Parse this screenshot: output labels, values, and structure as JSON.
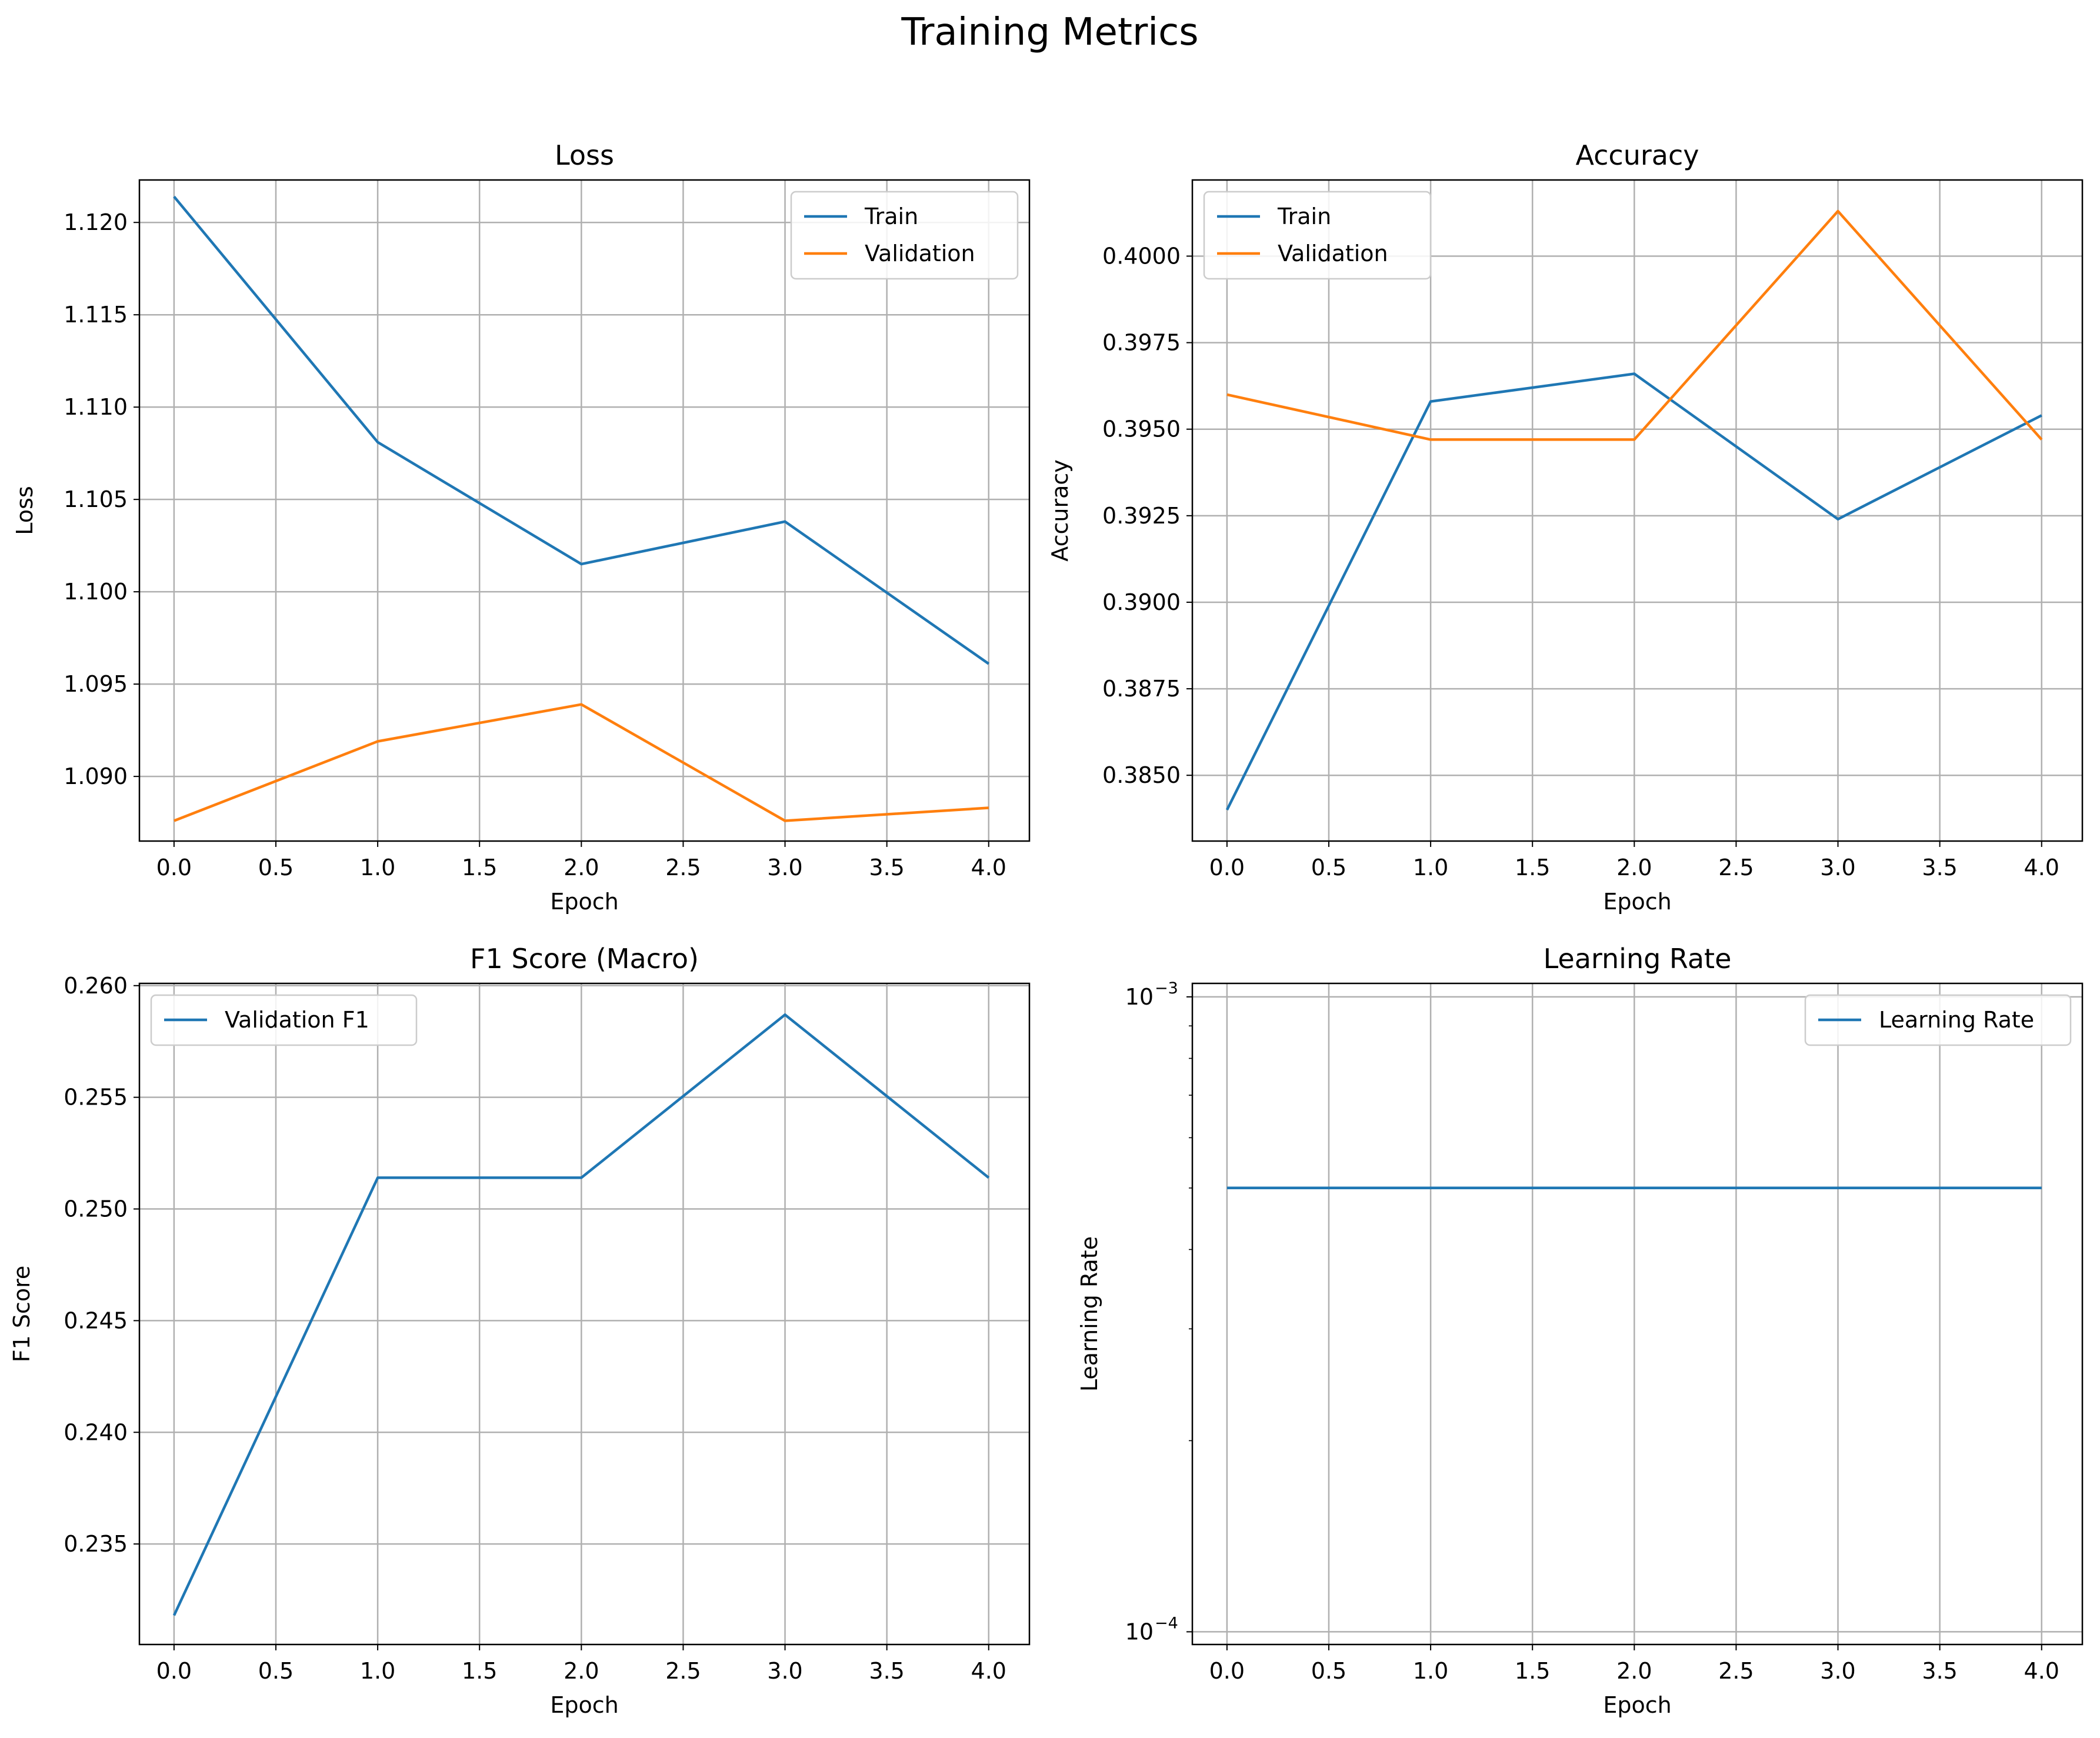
{
  "figure_title": "Training Metrics",
  "colors": {
    "train": "#1f77b4",
    "validation": "#ff7f0e",
    "grid": "#b0b0b0"
  },
  "chart_data": [
    {
      "id": "loss",
      "type": "line",
      "title": "Loss",
      "xlabel": "Epoch",
      "ylabel": "Loss",
      "x": [
        0,
        1,
        2,
        3,
        4
      ],
      "xlim": [
        -0.17,
        4.2
      ],
      "xticks": [
        0,
        0.5,
        1,
        1.5,
        2,
        2.5,
        3,
        3.5,
        4
      ],
      "xtick_labels": [
        "0.0",
        "0.5",
        "1.0",
        "1.5",
        "2.0",
        "2.5",
        "3.0",
        "3.5",
        "4.0"
      ],
      "ylim": [
        1.0865,
        1.1223
      ],
      "yticks": [
        1.09,
        1.095,
        1.1,
        1.105,
        1.11,
        1.115,
        1.12
      ],
      "ytick_labels": [
        "1.090",
        "1.095",
        "1.100",
        "1.105",
        "1.110",
        "1.115",
        "1.120"
      ],
      "yscale": "linear",
      "grid": true,
      "legend_position": "upper-right",
      "series": [
        {
          "name": "Train",
          "color": "#1f77b4",
          "values": [
            1.1214,
            1.1081,
            1.1015,
            1.1038,
            1.0961
          ]
        },
        {
          "name": "Validation",
          "color": "#ff7f0e",
          "values": [
            1.0876,
            1.0919,
            1.0939,
            1.0876,
            1.0883
          ]
        }
      ]
    },
    {
      "id": "accuracy",
      "type": "line",
      "title": "Accuracy",
      "xlabel": "Epoch",
      "ylabel": "Accuracy",
      "x": [
        0,
        1,
        2,
        3,
        4
      ],
      "xlim": [
        -0.17,
        4.2
      ],
      "xticks": [
        0,
        0.5,
        1,
        1.5,
        2,
        2.5,
        3,
        3.5,
        4
      ],
      "xtick_labels": [
        "0.0",
        "0.5",
        "1.0",
        "1.5",
        "2.0",
        "2.5",
        "3.0",
        "3.5",
        "4.0"
      ],
      "ylim": [
        0.3831,
        0.4022
      ],
      "yticks": [
        0.385,
        0.3875,
        0.39,
        0.3925,
        0.395,
        0.3975,
        0.4
      ],
      "ytick_labels": [
        "0.3850",
        "0.3875",
        "0.3900",
        "0.3925",
        "0.3950",
        "0.3975",
        "0.4000"
      ],
      "yscale": "linear",
      "grid": true,
      "legend_position": "upper-left",
      "series": [
        {
          "name": "Train",
          "color": "#1f77b4",
          "values": [
            0.384,
            0.3958,
            0.3966,
            0.3924,
            0.3954
          ]
        },
        {
          "name": "Validation",
          "color": "#ff7f0e",
          "values": [
            0.396,
            0.3947,
            0.3947,
            0.4013,
            0.3947
          ]
        }
      ]
    },
    {
      "id": "f1",
      "type": "line",
      "title": "F1 Score (Macro)",
      "xlabel": "Epoch",
      "ylabel": "F1 Score",
      "x": [
        0,
        1,
        2,
        3,
        4
      ],
      "xlim": [
        -0.17,
        4.2
      ],
      "xticks": [
        0,
        0.5,
        1,
        1.5,
        2,
        2.5,
        3,
        3.5,
        4
      ],
      "xtick_labels": [
        "0.0",
        "0.5",
        "1.0",
        "1.5",
        "2.0",
        "2.5",
        "3.0",
        "3.5",
        "4.0"
      ],
      "ylim": [
        0.2305,
        0.2601
      ],
      "yticks": [
        0.235,
        0.24,
        0.245,
        0.25,
        0.255,
        0.26
      ],
      "ytick_labels": [
        "0.235",
        "0.240",
        "0.245",
        "0.250",
        "0.255",
        "0.260"
      ],
      "yscale": "linear",
      "grid": true,
      "legend_position": "upper-left",
      "series": [
        {
          "name": "Validation F1",
          "color": "#1f77b4",
          "values": [
            0.2318,
            0.2514,
            0.2514,
            0.2587,
            0.2514
          ]
        }
      ]
    },
    {
      "id": "lr",
      "type": "line",
      "title": "Learning Rate",
      "xlabel": "Epoch",
      "ylabel": "Learning Rate",
      "x": [
        0,
        1,
        2,
        3,
        4
      ],
      "xlim": [
        -0.17,
        4.2
      ],
      "xticks": [
        0,
        0.5,
        1,
        1.5,
        2,
        2.5,
        3,
        3.5,
        4
      ],
      "xtick_labels": [
        "0.0",
        "0.5",
        "1.0",
        "1.5",
        "2.0",
        "2.5",
        "3.0",
        "3.5",
        "4.0"
      ],
      "ylim": [
        9.55e-05,
        0.00105
      ],
      "yticks": [
        0.0001,
        0.001
      ],
      "ytick_labels": [
        {
          "base": "10",
          "exp": "−4"
        },
        {
          "base": "10",
          "exp": "−3"
        }
      ],
      "minor_yticks": [
        0.0002,
        0.0003,
        0.0004,
        0.0005,
        0.0006,
        0.0007,
        0.0008,
        0.0009
      ],
      "yscale": "log",
      "grid": true,
      "legend_position": "upper-right",
      "series": [
        {
          "name": "Learning Rate",
          "color": "#1f77b4",
          "values": [
            0.0005,
            0.0005,
            0.0005,
            0.0005,
            0.0005
          ]
        }
      ]
    }
  ]
}
